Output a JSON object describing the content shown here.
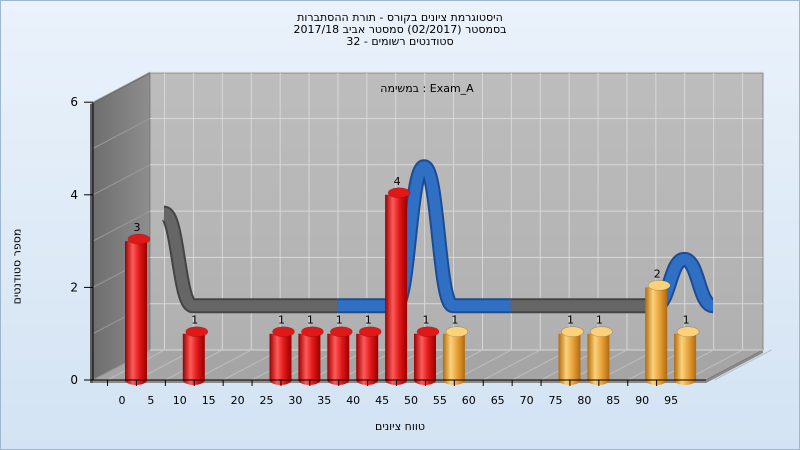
{
  "chart_data": {
    "type": "bar",
    "title_lines": [
      "היסטוגרמת ציונים בקורס - תורת ההסתברות",
      "בסמסטר  (02/2017)  סמסטר אביב 2017/18",
      "סטודנטים רשומים - 32"
    ],
    "annotation": "במשימה : Exam_A",
    "xlabel": "טווח ציונים",
    "ylabel": "מספר סטודנטים",
    "x_ticks": [
      "0",
      "5",
      "10",
      "15",
      "20",
      "25",
      "30",
      "35",
      "40",
      "45",
      "50",
      "55",
      "60",
      "65",
      "70",
      "75",
      "80",
      "85",
      "90",
      "95"
    ],
    "y_ticks": [
      "0",
      "2",
      "4",
      "6"
    ],
    "ylim": [
      0,
      6
    ],
    "grid": true,
    "bars": [
      {
        "bin": 0,
        "value": 3,
        "color": "red"
      },
      {
        "bin": 10,
        "value": 1,
        "color": "red"
      },
      {
        "bin": 25,
        "value": 1,
        "color": "red"
      },
      {
        "bin": 30,
        "value": 1,
        "color": "red"
      },
      {
        "bin": 35,
        "value": 1,
        "color": "red"
      },
      {
        "bin": 40,
        "value": 1,
        "color": "red"
      },
      {
        "bin": 45,
        "value": 4,
        "color": "red"
      },
      {
        "bin": 50,
        "value": 1,
        "color": "red"
      },
      {
        "bin": 55,
        "value": 1,
        "color": "orange"
      },
      {
        "bin": 75,
        "value": 1,
        "color": "orange"
      },
      {
        "bin": 80,
        "value": 1,
        "color": "orange"
      },
      {
        "bin": 90,
        "value": 2,
        "color": "orange"
      },
      {
        "bin": 95,
        "value": 1,
        "color": "orange"
      }
    ],
    "colors": {
      "red_light": "#ff5a5a",
      "red_mid": "#e01818",
      "red_dark": "#9a0000",
      "orange_light": "#fbd27a",
      "orange_mid": "#e8a23a",
      "orange_dark": "#b06a10",
      "ribbon_gray": "#666666",
      "ribbon_blue": "#2f6fc4",
      "wall": "#b4b4b4",
      "floor": "#999999",
      "side_wall": "#7c7c7c"
    }
  }
}
